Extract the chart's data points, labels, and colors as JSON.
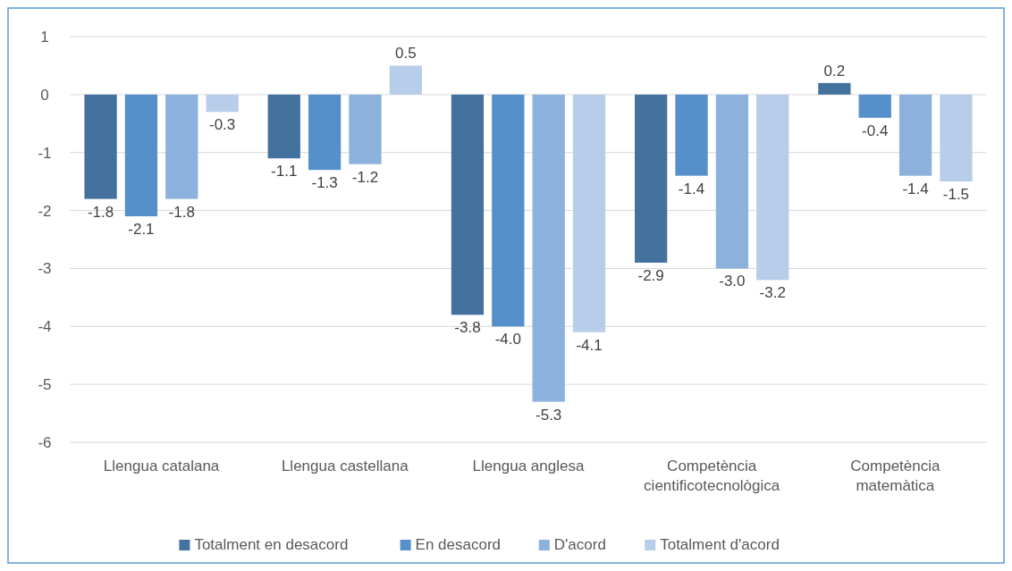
{
  "chart_data": {
    "type": "bar",
    "categories": [
      "Llengua catalana",
      "Llengua castellana",
      "Llengua anglesa",
      "Competència cientificotecnològica",
      "Competència matemàtica"
    ],
    "series": [
      {
        "name": "Totalment en desacord",
        "color": "#44729f",
        "values": [
          -1.8,
          -1.1,
          -3.8,
          -2.9,
          0.2
        ],
        "value_labels": [
          "-1.8",
          "-1.1",
          "-3.8",
          "-2.9",
          "0.2"
        ]
      },
      {
        "name": "En desacord",
        "color": "#5590cb",
        "values": [
          -2.1,
          -1.3,
          -4.0,
          -1.4,
          -0.4
        ],
        "value_labels": [
          "-2.1",
          "-1.3",
          "-4.0",
          "-1.4",
          "-0.4"
        ]
      },
      {
        "name": "D'acord",
        "color": "#8bb1dc",
        "values": [
          -1.8,
          -1.2,
          -5.3,
          -3.0,
          -1.4
        ],
        "value_labels": [
          "-1.8",
          "-1.2",
          "-5.3",
          "-3.0",
          "-1.4"
        ]
      },
      {
        "name": "Totalment d'acord",
        "color": "#b8cde9",
        "values": [
          -0.3,
          0.5,
          -4.1,
          -3.2,
          -1.5
        ],
        "value_labels": [
          "-0.3",
          "0.5",
          "-4.1",
          "-3.2",
          "-1.5"
        ]
      }
    ],
    "ylim": [
      -6,
      1
    ],
    "yticks": [
      1,
      0,
      -1,
      -2,
      -3,
      -4,
      -5,
      -6
    ],
    "grid": "y",
    "legend": "bottom"
  }
}
